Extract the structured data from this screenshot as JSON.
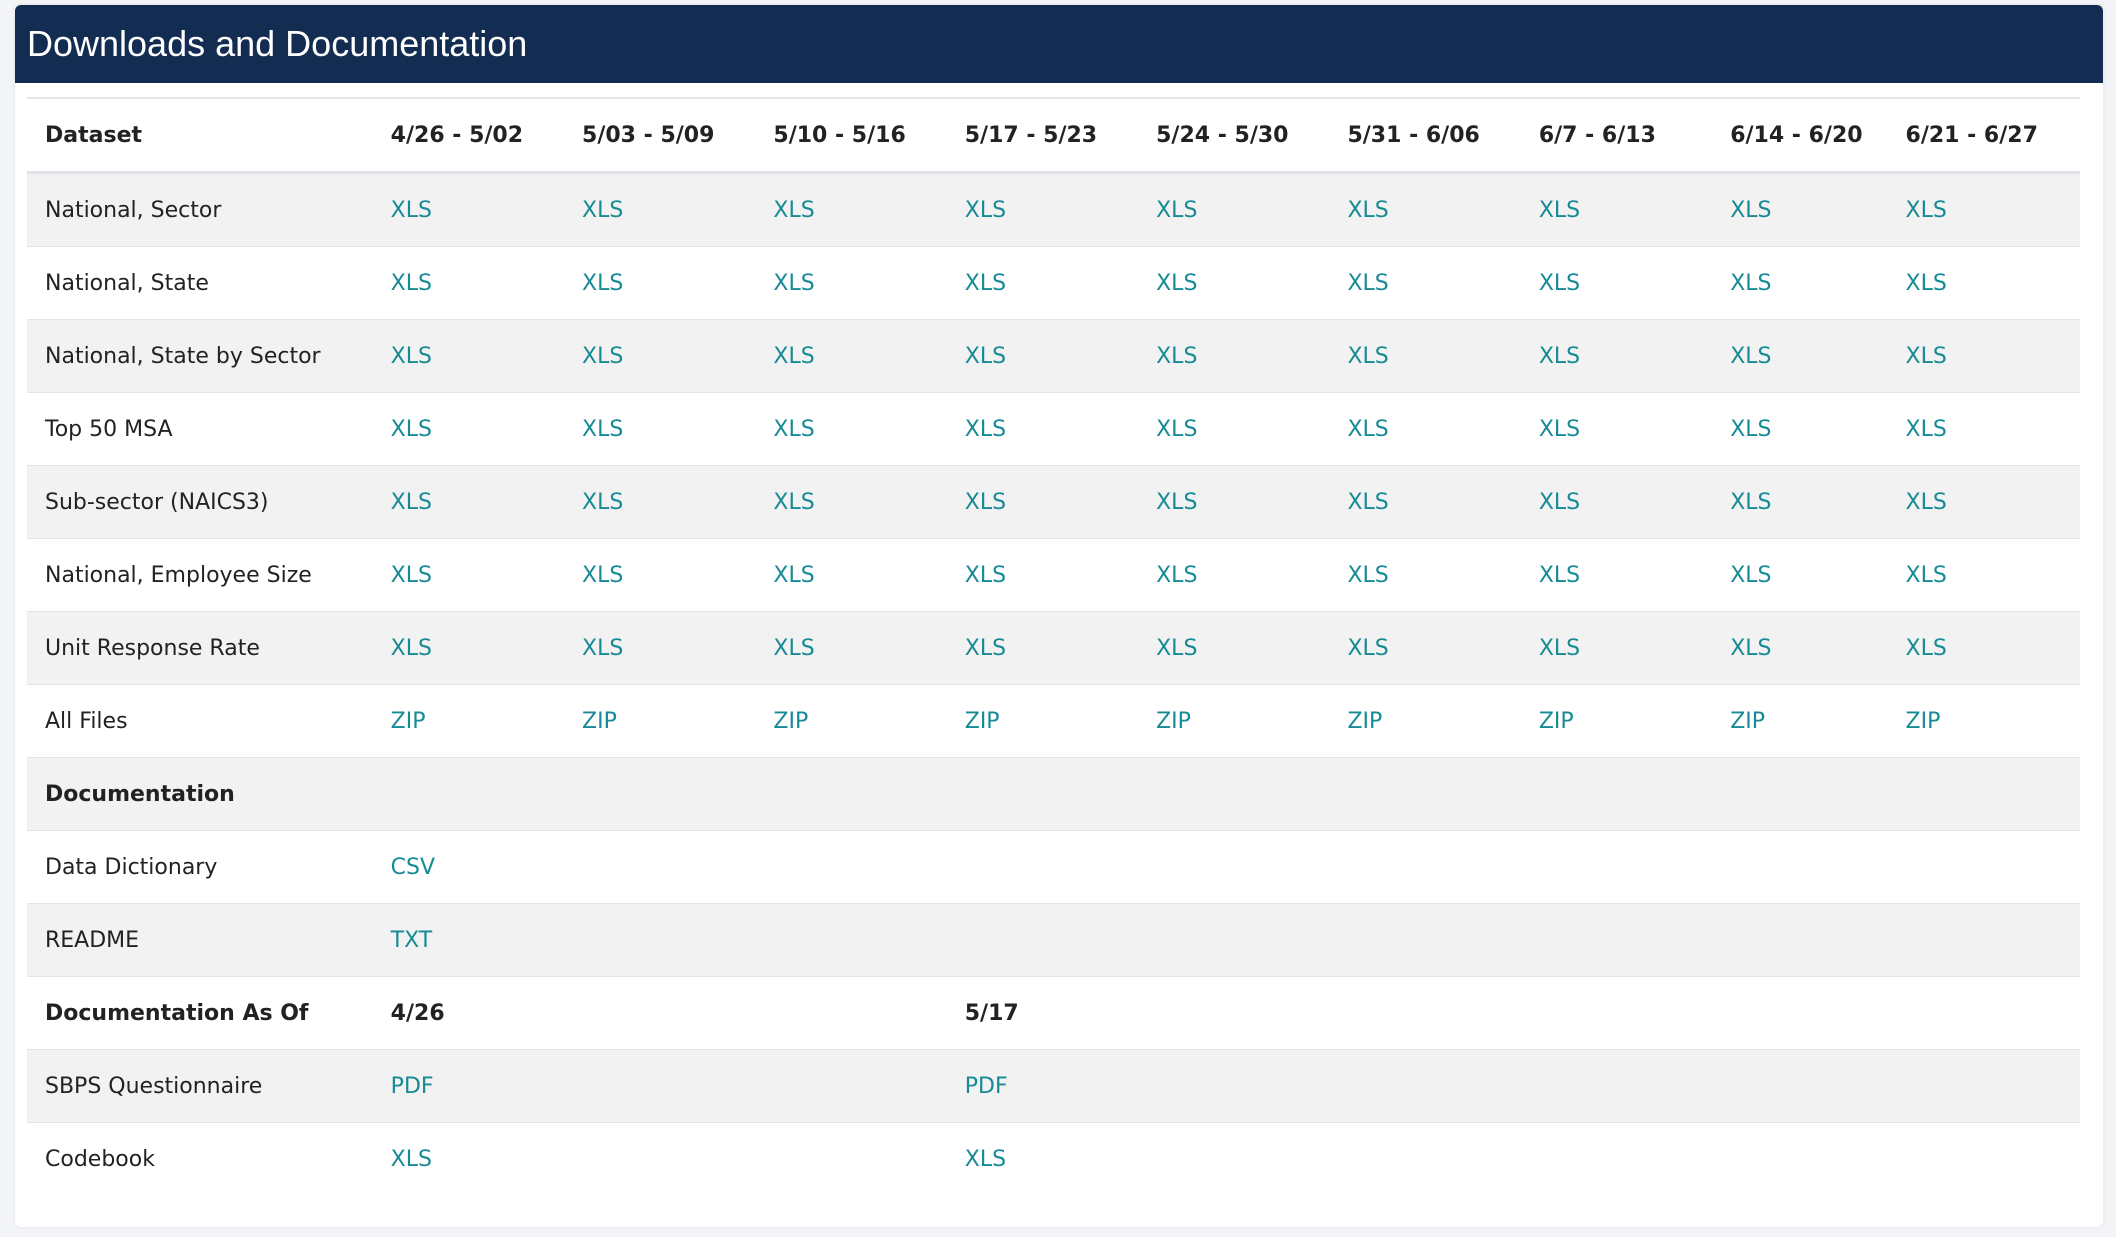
{
  "title": "Downloads and Documentation",
  "colors": {
    "header_bg": "#132d52",
    "link": "#168a95",
    "stripe": "#f2f2f2"
  },
  "table": {
    "headers": [
      "Dataset",
      "4/26 - 5/02",
      "5/03 - 5/09",
      "5/10 - 5/16",
      "5/17 - 5/23",
      "5/24 - 5/30",
      "5/31 - 6/06",
      "6/7 - 6/13",
      "6/14 - 6/20",
      "6/21 - 6/27"
    ],
    "rows": [
      {
        "label": "National, Sector",
        "cells": [
          "XLS",
          "XLS",
          "XLS",
          "XLS",
          "XLS",
          "XLS",
          "XLS",
          "XLS",
          "XLS"
        ]
      },
      {
        "label": "National, State",
        "cells": [
          "XLS",
          "XLS",
          "XLS",
          "XLS",
          "XLS",
          "XLS",
          "XLS",
          "XLS",
          "XLS"
        ]
      },
      {
        "label": "National, State by Sector",
        "cells": [
          "XLS",
          "XLS",
          "XLS",
          "XLS",
          "XLS",
          "XLS",
          "XLS",
          "XLS",
          "XLS"
        ]
      },
      {
        "label": "Top 50 MSA",
        "cells": [
          "XLS",
          "XLS",
          "XLS",
          "XLS",
          "XLS",
          "XLS",
          "XLS",
          "XLS",
          "XLS"
        ]
      },
      {
        "label": "Sub-sector (NAICS3)",
        "cells": [
          "XLS",
          "XLS",
          "XLS",
          "XLS",
          "XLS",
          "XLS",
          "XLS",
          "XLS",
          "XLS"
        ]
      },
      {
        "label": "National, Employee Size",
        "cells": [
          "XLS",
          "XLS",
          "XLS",
          "XLS",
          "XLS",
          "XLS",
          "XLS",
          "XLS",
          "XLS"
        ]
      },
      {
        "label": "Unit Response Rate",
        "cells": [
          "XLS",
          "XLS",
          "XLS",
          "XLS",
          "XLS",
          "XLS",
          "XLS",
          "XLS",
          "XLS"
        ]
      },
      {
        "label": "All Files",
        "cells": [
          "ZIP",
          "ZIP",
          "ZIP",
          "ZIP",
          "ZIP",
          "ZIP",
          "ZIP",
          "ZIP",
          "ZIP"
        ]
      },
      {
        "label": "Documentation",
        "heading": true,
        "cells": [
          "",
          "",
          "",
          "",
          "",
          "",
          "",
          "",
          ""
        ]
      },
      {
        "label": "Data Dictionary",
        "cells": [
          "CSV",
          "",
          "",
          "",
          "",
          "",
          "",
          "",
          ""
        ]
      },
      {
        "label": "README",
        "cells": [
          "TXT",
          "",
          "",
          "",
          "",
          "",
          "",
          "",
          ""
        ]
      },
      {
        "label": "Documentation As Of",
        "heading": true,
        "cells": [
          "4/26",
          "",
          "",
          "5/17",
          "",
          "",
          "",
          "",
          ""
        ]
      },
      {
        "label": "SBPS Questionnaire",
        "cells": [
          "PDF",
          "",
          "",
          "PDF",
          "",
          "",
          "",
          "",
          ""
        ]
      },
      {
        "label": "Codebook",
        "cells": [
          "XLS",
          "",
          "",
          "XLS",
          "",
          "",
          "",
          "",
          ""
        ]
      }
    ]
  }
}
